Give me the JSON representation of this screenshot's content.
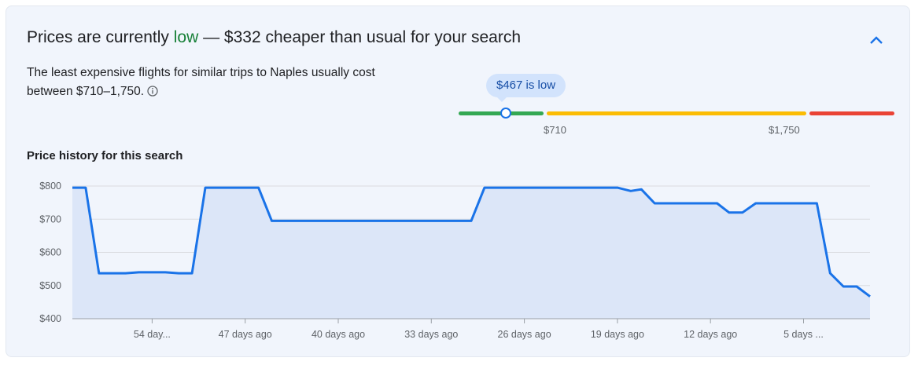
{
  "header": {
    "prefix": "Prices are currently ",
    "status": "low",
    "suffix": " — $332 cheaper than usual for your search"
  },
  "description": "The least expensive flights for similar trips to Naples usually cost between $710–1,750.",
  "range": {
    "badge": "$467 is low",
    "low_label": "$710",
    "high_label": "$1,750"
  },
  "history_title": "Price history for this search",
  "colors": {
    "accent": "#1a73e8",
    "low": "#188038",
    "green": "#34a853",
    "yellow": "#fbbc04",
    "red": "#ea4335"
  },
  "chart_data": {
    "type": "area",
    "ylim": [
      400,
      800
    ],
    "yticks": [
      "$800",
      "$700",
      "$600",
      "$500",
      "$400"
    ],
    "xlim": [
      60,
      0
    ],
    "xticks": [
      {
        "label": "54 day...",
        "days_ago": 54
      },
      {
        "label": "47 days ago",
        "days_ago": 47
      },
      {
        "label": "40 days ago",
        "days_ago": 40
      },
      {
        "label": "33 days ago",
        "days_ago": 33
      },
      {
        "label": "26 days ago",
        "days_ago": 26
      },
      {
        "label": "19 days ago",
        "days_ago": 19
      },
      {
        "label": "12 days ago",
        "days_ago": 12
      },
      {
        "label": "5 days ...",
        "days_ago": 5
      }
    ],
    "series": [
      {
        "points": [
          [
            60,
            795
          ],
          [
            59,
            795
          ],
          [
            58,
            537
          ],
          [
            56,
            537
          ],
          [
            55,
            540
          ],
          [
            53,
            540
          ],
          [
            52,
            537
          ],
          [
            51,
            537
          ],
          [
            50,
            795
          ],
          [
            46,
            795
          ],
          [
            45,
            695
          ],
          [
            30,
            695
          ],
          [
            29,
            795
          ],
          [
            19,
            795
          ],
          [
            18,
            785
          ],
          [
            17.2,
            790
          ],
          [
            16.2,
            748
          ],
          [
            11.5,
            748
          ],
          [
            10.6,
            720
          ],
          [
            9.6,
            720
          ],
          [
            8.6,
            748
          ],
          [
            4,
            748
          ],
          [
            3,
            537
          ],
          [
            2,
            497
          ],
          [
            1,
            497
          ],
          [
            0,
            467
          ]
        ]
      }
    ]
  }
}
